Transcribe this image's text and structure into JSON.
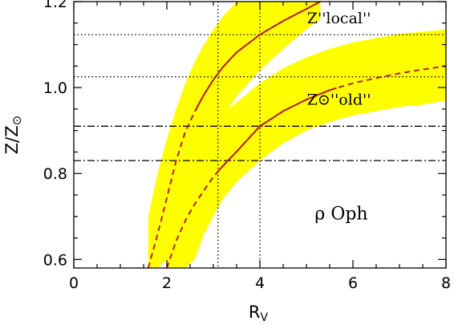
{
  "chart_data": {
    "type": "line",
    "title": "",
    "xlabel": "R",
    "xlabel_subscript": "V",
    "ylabel": "Z/Z",
    "ylabel_subscript": "⊙",
    "xlim": [
      0,
      8
    ],
    "ylim": [
      0.58,
      1.2
    ],
    "xticks": [
      0,
      2,
      4,
      6,
      8
    ],
    "yticks": [
      0.6,
      0.8,
      1.0,
      1.2
    ],
    "xtick_labels": [
      "0",
      "2",
      "4",
      "6",
      "8"
    ],
    "ytick_labels": [
      "0.6",
      "0.8",
      "1.0",
      "1.2"
    ],
    "grid": false,
    "colors": {
      "band": "#ffff00",
      "curve": "#b22222",
      "reference": "#000000"
    },
    "annotations": [
      {
        "text": "Z''local''",
        "x": 5.7,
        "y": 1.15
      },
      {
        "text": "Z⊙''old''",
        "x": 5.7,
        "y": 0.96
      },
      {
        "text": "ρ Oph",
        "x": 5.75,
        "y": 0.693
      }
    ],
    "reference_lines": {
      "horizontal_dotted": [
        1.123,
        1.025
      ],
      "horizontal_dashdot": [
        0.91,
        0.83
      ],
      "vertical_dotted": [
        3.1,
        4.0
      ]
    },
    "series": [
      {
        "x": [
          1.6,
          1.8,
          2.0,
          2.2,
          2.4,
          2.6,
          2.8,
          3.0,
          3.2,
          3.5,
          4.0,
          4.5,
          5.0,
          5.3
        ],
        "y": [
          0.58,
          0.658,
          0.743,
          0.83,
          0.898,
          0.944,
          0.984,
          1.018,
          1.047,
          1.082,
          1.123,
          1.155,
          1.183,
          1.2
        ],
        "solid_from_x": 2.62,
        "band_lower": [
          0.58,
          0.58,
          0.6,
          0.66,
          0.74,
          0.8,
          0.85,
          0.89,
          0.93,
          0.98,
          1.04,
          1.09,
          1.135,
          1.16
        ],
        "band_upper": [
          0.7,
          0.8,
          0.88,
          0.95,
          1.01,
          1.06,
          1.1,
          1.135,
          1.165,
          1.2,
          1.2,
          1.2,
          1.2,
          1.2
        ]
      },
      {
        "x": [
          2.0,
          2.2,
          2.4,
          2.6,
          2.8,
          3.0,
          3.2,
          3.5,
          4.0,
          4.5,
          5.0,
          5.5,
          6.0,
          6.5,
          7.0,
          7.5,
          8.0
        ],
        "y": [
          0.58,
          0.643,
          0.691,
          0.729,
          0.761,
          0.792,
          0.817,
          0.851,
          0.91,
          0.945,
          0.972,
          0.994,
          1.01,
          1.022,
          1.033,
          1.042,
          1.05
        ],
        "solid_from_x": 3.05,
        "solid_to_x": 5.65,
        "band_lower": [
          0.58,
          0.58,
          0.58,
          0.6,
          0.66,
          0.7,
          0.74,
          0.78,
          0.83,
          0.87,
          0.9,
          0.92,
          0.935,
          0.945,
          0.955,
          0.96,
          0.97
        ],
        "band_upper": [
          0.73,
          0.79,
          0.83,
          0.865,
          0.895,
          0.92,
          0.94,
          0.965,
          1.01,
          1.045,
          1.07,
          1.09,
          1.105,
          1.115,
          1.125,
          1.13,
          1.135
        ]
      }
    ]
  }
}
